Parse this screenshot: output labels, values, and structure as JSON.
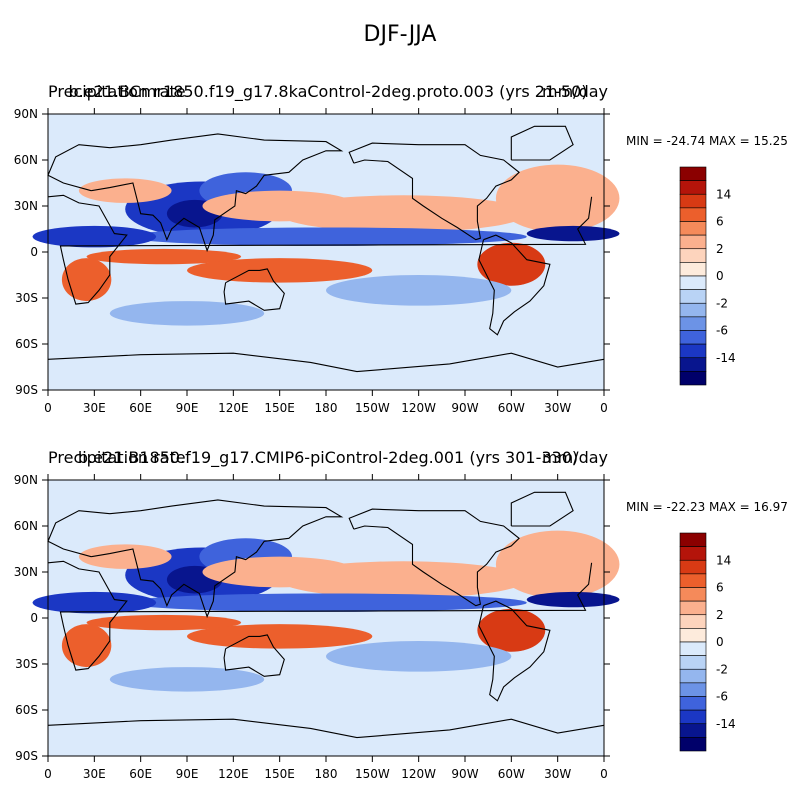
{
  "figure": {
    "title": "DJF-JJA"
  },
  "panels": [
    {
      "variable": "Precipitation rate",
      "case": "b.e21.BCmr1850.f19_g17.8kaControl-2deg.proto.003 (yrs 21-50)",
      "units": "mm/day",
      "stats": "MIN = -24.74 MAX =  15.25"
    },
    {
      "variable": "Precipitation rate",
      "case": "b.e21.B1850.f19_g17.CMIP6-piControl-2deg.001 (yrs 301-330)",
      "units": "mm/day",
      "stats": "MIN = -22.23 MAX =  16.97"
    }
  ],
  "chart_data": [
    {
      "type": "heatmap",
      "title": "DJF-JJA",
      "subtitle": "b.e21.BCmr1850.f19_g17.8kaControl-2deg.proto.003 (yrs 21-50)",
      "variable": "Precipitation rate",
      "units": "mm/day",
      "xlim": [
        0,
        360
      ],
      "ylim": [
        -90,
        90
      ],
      "x_ticks": [
        "0",
        "30E",
        "60E",
        "90E",
        "120E",
        "150E",
        "180",
        "150W",
        "120W",
        "90W",
        "60W",
        "30W",
        "0"
      ],
      "y_ticks": [
        "90S",
        "60S",
        "30S",
        "0",
        "30N",
        "60N",
        "90N"
      ],
      "min": -24.74,
      "max": 15.25,
      "colorbar": {
        "levels": [
          -18,
          -14,
          -10,
          -6,
          -4,
          -2,
          -1,
          0,
          1,
          2,
          4,
          6,
          10,
          14,
          18
        ],
        "labels": [
          "14",
          "6",
          "2",
          "0",
          "-2",
          "-6",
          "-14"
        ],
        "colors": [
          "#8b0000",
          "#b4140a",
          "#d83a14",
          "#ec5f2c",
          "#f58a5a",
          "#fbb08e",
          "#fdd4bd",
          "#fdebdc",
          "#dbeafb",
          "#b9d3f5",
          "#94b6ee",
          "#6c93e6",
          "#3f63dc",
          "#1b37c4",
          "#08158e",
          "#00006a"
        ]
      },
      "grid": false,
      "legend": "right"
    },
    {
      "type": "heatmap",
      "title": "DJF-JJA",
      "subtitle": "b.e21.B1850.f19_g17.CMIP6-piControl-2deg.001 (yrs 301-330)",
      "variable": "Precipitation rate",
      "units": "mm/day",
      "xlim": [
        0,
        360
      ],
      "ylim": [
        -90,
        90
      ],
      "x_ticks": [
        "0",
        "30E",
        "60E",
        "90E",
        "120E",
        "150E",
        "180",
        "150W",
        "120W",
        "90W",
        "60W",
        "30W",
        "0"
      ],
      "y_ticks": [
        "90S",
        "60S",
        "30S",
        "0",
        "30N",
        "60N",
        "90N"
      ],
      "min": -22.23,
      "max": 16.97,
      "colorbar": {
        "levels": [
          -18,
          -14,
          -10,
          -6,
          -4,
          -2,
          -1,
          0,
          1,
          2,
          4,
          6,
          10,
          14,
          18
        ],
        "labels": [
          "14",
          "6",
          "2",
          "0",
          "-2",
          "-6",
          "-14"
        ],
        "colors": [
          "#8b0000",
          "#b4140a",
          "#d83a14",
          "#ec5f2c",
          "#f58a5a",
          "#fbb08e",
          "#fdd4bd",
          "#fdebdc",
          "#dbeafb",
          "#b9d3f5",
          "#94b6ee",
          "#6c93e6",
          "#3f63dc",
          "#1b37c4",
          "#08158e",
          "#00006a"
        ]
      },
      "grid": false,
      "legend": "right"
    }
  ]
}
